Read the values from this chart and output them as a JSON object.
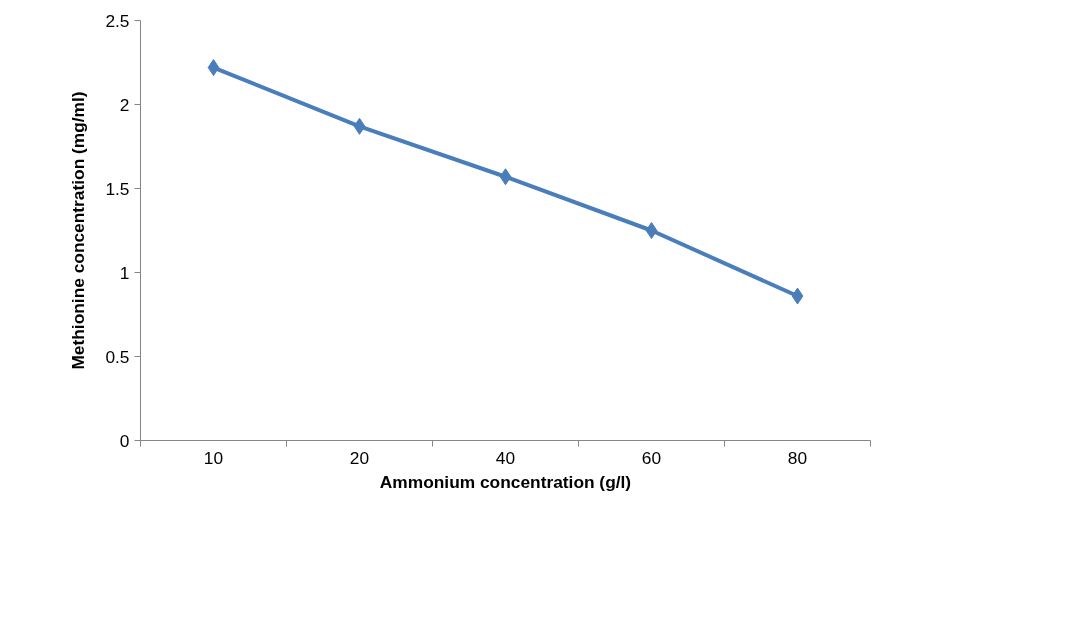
{
  "chart_data": {
    "type": "line",
    "xlabel": "Ammonium concentration (g/l)",
    "ylabel": "Methionine concentration (mg/ml)",
    "categories": [
      "10",
      "20",
      "40",
      "60",
      "80"
    ],
    "series": [
      {
        "color": "#4a7ebb",
        "values": [
          2.22,
          1.87,
          1.57,
          1.25,
          0.86
        ]
      }
    ],
    "ylim": [
      0,
      2.5
    ],
    "yticks": [
      0,
      0.5,
      1,
      1.5,
      2,
      2.5
    ],
    "grid": false,
    "marker": "diamond",
    "line_style": "solid"
  }
}
